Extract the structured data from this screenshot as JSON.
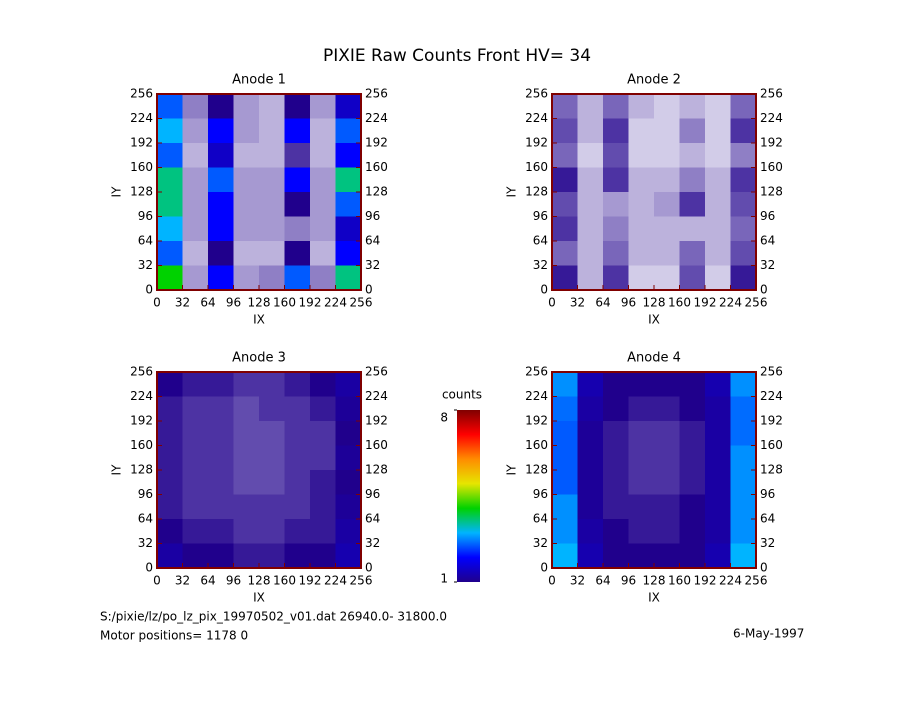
{
  "title": "PIXIE Raw Counts Front HV= 34",
  "colorbar": {
    "label": "counts",
    "lim": [
      1,
      8
    ],
    "ticks": [
      1,
      8
    ],
    "colormap": [
      "#20008c",
      "#0000ff",
      "#00b4ff",
      "#00d200",
      "#e6e600",
      "#ff8c00",
      "#ff0000",
      "#800000"
    ]
  },
  "footer": {
    "file": "S:/pixie/lz/po_lz_pix_19970502_v01.dat   26940.0- 31800.0",
    "motor": "Motor positions= 1178 0",
    "date": "6-May-1997"
  },
  "chart_data": [
    {
      "type": "heatmap",
      "title": "Anode 1",
      "xlabel": "IX",
      "ylabel": "IY",
      "frame_color": "#800000",
      "xlim": [
        0,
        256
      ],
      "ylim": [
        0,
        256
      ],
      "xticks": [
        0,
        32,
        64,
        96,
        128,
        160,
        192,
        224,
        256
      ],
      "yticks": [
        0,
        32,
        64,
        96,
        128,
        160,
        192,
        224,
        256
      ],
      "xbins": [
        0,
        32,
        64,
        96,
        128,
        160,
        192,
        224,
        256
      ],
      "ybins": [
        0,
        32,
        64,
        96,
        128,
        160,
        192,
        224,
        256
      ],
      "z": [
        [
          4,
          0.4,
          2,
          0.4,
          0.5,
          2.5,
          0.5,
          3.5
        ],
        [
          2.5,
          0.3,
          1,
          0.3,
          0.3,
          1,
          0.3,
          2
        ],
        [
          3,
          0.4,
          2,
          0.4,
          0.4,
          0.5,
          0.4,
          1.5
        ],
        [
          3.5,
          0.4,
          2,
          0.4,
          0.4,
          1,
          0.4,
          2.5
        ],
        [
          3.5,
          0.4,
          2.5,
          0.4,
          0.4,
          2,
          0.4,
          3.5
        ],
        [
          2.5,
          0.3,
          1.5,
          0.3,
          0.3,
          0.8,
          0.3,
          2
        ],
        [
          3,
          0.4,
          2,
          0.4,
          0.3,
          2,
          0.3,
          2.5
        ],
        [
          2.5,
          0.5,
          1,
          0.4,
          0.3,
          1,
          0.4,
          1.5
        ]
      ]
    },
    {
      "type": "heatmap",
      "title": "Anode 2",
      "xlabel": "IX",
      "ylabel": "IY",
      "frame_color": "#800000",
      "xlim": [
        0,
        256
      ],
      "ylim": [
        0,
        256
      ],
      "xticks": [
        0,
        32,
        64,
        96,
        128,
        160,
        192,
        224,
        256
      ],
      "yticks": [
        0,
        32,
        64,
        96,
        128,
        160,
        192,
        224,
        256
      ],
      "xbins": [
        0,
        32,
        64,
        96,
        128,
        160,
        192,
        224,
        256
      ],
      "ybins": [
        0,
        32,
        64,
        96,
        128,
        160,
        192,
        224,
        256
      ],
      "z": [
        [
          0.9,
          0.3,
          0.8,
          0.2,
          0.2,
          0.7,
          0.2,
          0.9
        ],
        [
          0.6,
          0.3,
          0.6,
          0.3,
          0.3,
          0.6,
          0.3,
          0.7
        ],
        [
          0.8,
          0.3,
          0.5,
          0.3,
          0.3,
          0.3,
          0.3,
          0.6
        ],
        [
          0.7,
          0.3,
          0.4,
          0.3,
          0.4,
          0.8,
          0.3,
          0.7
        ],
        [
          0.9,
          0.3,
          0.8,
          0.3,
          0.3,
          0.5,
          0.3,
          0.8
        ],
        [
          0.6,
          0.2,
          0.7,
          0.2,
          0.2,
          0.3,
          0.2,
          0.5
        ],
        [
          0.7,
          0.3,
          0.8,
          0.2,
          0.2,
          0.5,
          0.2,
          0.8
        ],
        [
          0.6,
          0.3,
          0.6,
          0.3,
          0.2,
          0.3,
          0.2,
          0.6
        ]
      ]
    },
    {
      "type": "heatmap",
      "title": "Anode 3",
      "xlabel": "IX",
      "ylabel": "IY",
      "frame_color": "#800000",
      "xlim": [
        0,
        256
      ],
      "ylim": [
        0,
        256
      ],
      "xticks": [
        0,
        32,
        64,
        96,
        128,
        160,
        192,
        224,
        256
      ],
      "yticks": [
        0,
        32,
        64,
        96,
        128,
        160,
        192,
        224,
        256
      ],
      "xbins": [
        0,
        32,
        64,
        96,
        128,
        160,
        192,
        224,
        256
      ],
      "ybins": [
        0,
        32,
        64,
        96,
        128,
        160,
        192,
        224,
        256
      ],
      "z": [
        [
          1.2,
          1,
          1,
          0.9,
          0.9,
          1,
          1,
          1.3
        ],
        [
          1,
          0.9,
          0.9,
          0.8,
          0.8,
          0.9,
          0.9,
          1.2
        ],
        [
          0.9,
          0.8,
          0.8,
          0.8,
          0.8,
          0.8,
          0.9,
          1.1
        ],
        [
          0.9,
          0.8,
          0.8,
          0.7,
          0.7,
          0.8,
          0.9,
          1
        ],
        [
          0.9,
          0.8,
          0.8,
          0.7,
          0.7,
          0.8,
          0.8,
          1.1
        ],
        [
          0.9,
          0.8,
          0.8,
          0.7,
          0.7,
          0.8,
          0.8,
          1
        ],
        [
          0.9,
          0.8,
          0.8,
          0.7,
          0.8,
          0.8,
          0.9,
          1.1
        ],
        [
          1,
          0.9,
          0.9,
          0.8,
          0.8,
          0.9,
          1,
          1.2
        ]
      ]
    },
    {
      "type": "heatmap",
      "title": "Anode 4",
      "xlabel": "IX",
      "ylabel": "IY",
      "frame_color": "#800000",
      "xlim": [
        0,
        256
      ],
      "ylim": [
        0,
        256
      ],
      "xticks": [
        0,
        32,
        64,
        96,
        128,
        160,
        192,
        224,
        256
      ],
      "yticks": [
        0,
        32,
        64,
        96,
        128,
        160,
        192,
        224,
        256
      ],
      "xbins": [
        0,
        32,
        64,
        96,
        128,
        160,
        192,
        224,
        256
      ],
      "ybins": [
        0,
        32,
        64,
        96,
        128,
        160,
        192,
        224,
        256
      ],
      "z": [
        [
          3,
          1.3,
          1,
          1,
          1,
          1,
          1.3,
          3
        ],
        [
          2.8,
          1.2,
          1,
          0.9,
          0.9,
          1,
          1.2,
          2.8
        ],
        [
          2.8,
          1.1,
          0.9,
          0.9,
          0.9,
          1,
          1.2,
          2.8
        ],
        [
          2.5,
          1.1,
          0.9,
          0.8,
          0.8,
          0.9,
          1.2,
          2.8
        ],
        [
          2.5,
          1.1,
          0.9,
          0.8,
          0.8,
          0.9,
          1.2,
          2.8
        ],
        [
          2.5,
          1.1,
          0.9,
          0.8,
          0.8,
          0.9,
          1.2,
          2.6
        ],
        [
          2.6,
          1.2,
          1,
          0.9,
          0.9,
          1,
          1.2,
          2.6
        ],
        [
          2.8,
          1.3,
          1,
          1,
          1,
          1,
          1.3,
          2.8
        ]
      ]
    }
  ]
}
